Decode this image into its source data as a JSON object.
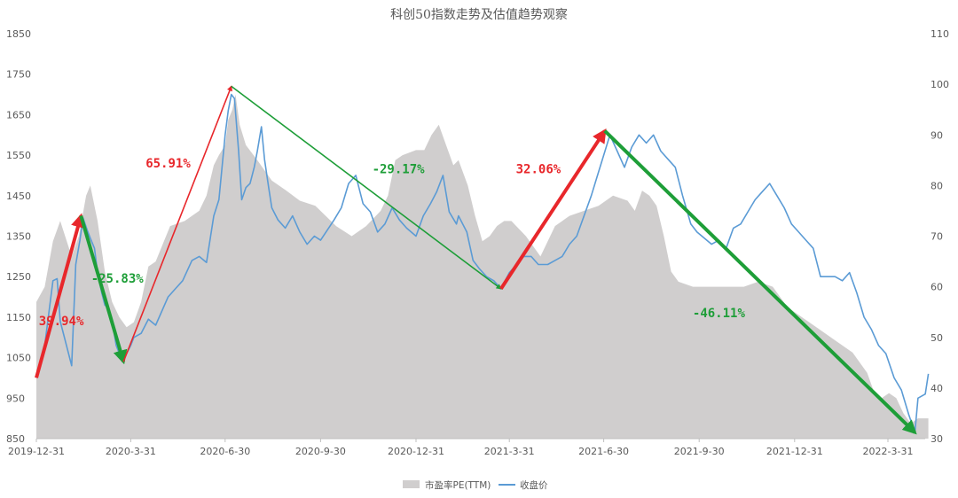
{
  "chart_data": {
    "type": "line",
    "title": "科创50指数走势及估值趋势观察",
    "xlabel": "",
    "ylabel": "",
    "x_ticks": [
      "2019-12-31",
      "2020-3-31",
      "2020-6-30",
      "2020-9-30",
      "2020-12-31",
      "2021-3-31",
      "2021-6-30",
      "2021-9-30",
      "2021-12-31",
      "2022-3-31"
    ],
    "ylim": [
      850,
      1850
    ],
    "y_ticks": [
      850,
      950,
      1050,
      1150,
      1250,
      1350,
      1450,
      1550,
      1650,
      1750,
      1850
    ],
    "y2lim": [
      30,
      110
    ],
    "y2_ticks": [
      30,
      40,
      50,
      60,
      70,
      80,
      90,
      100,
      110
    ],
    "grid": false,
    "legend_position": "bottom",
    "series": [
      {
        "name": "市盈率PE(TTM)",
        "type": "area",
        "axis": "right",
        "color": "#d0cece",
        "points": [
          [
            "2019-12-31",
            57
          ],
          [
            "2020-1-8",
            60
          ],
          [
            "2020-1-16",
            69
          ],
          [
            "2020-1-23",
            73
          ],
          [
            "2020-2-3",
            66
          ],
          [
            "2020-2-10",
            70
          ],
          [
            "2020-2-17",
            78
          ],
          [
            "2020-2-21",
            80
          ],
          [
            "2020-2-28",
            73
          ],
          [
            "2020-3-6",
            63
          ],
          [
            "2020-3-13",
            57
          ],
          [
            "2020-3-20",
            54
          ],
          [
            "2020-3-27",
            52
          ],
          [
            "2020-4-3",
            53
          ],
          [
            "2020-4-10",
            57
          ],
          [
            "2020-4-17",
            64
          ],
          [
            "2020-4-24",
            65
          ],
          [
            "2020-5-8",
            72
          ],
          [
            "2020-5-22",
            73
          ],
          [
            "2020-6-5",
            75
          ],
          [
            "2020-6-12",
            78
          ],
          [
            "2020-6-19",
            84
          ],
          [
            "2020-6-24",
            86
          ],
          [
            "2020-6-30",
            88
          ],
          [
            "2020-7-3",
            93
          ],
          [
            "2020-7-7",
            95
          ],
          [
            "2020-7-10",
            98
          ],
          [
            "2020-7-14",
            92
          ],
          [
            "2020-7-20",
            88
          ],
          [
            "2020-7-31",
            85
          ],
          [
            "2020-8-14",
            81
          ],
          [
            "2020-8-28",
            79
          ],
          [
            "2020-9-10",
            77
          ],
          [
            "2020-9-25",
            76
          ],
          [
            "2020-10-15",
            72
          ],
          [
            "2020-10-30",
            70
          ],
          [
            "2020-11-13",
            72
          ],
          [
            "2020-11-27",
            75
          ],
          [
            "2020-12-4",
            78
          ],
          [
            "2020-12-11",
            85
          ],
          [
            "2020-12-18",
            86
          ],
          [
            "2020-12-31",
            87
          ],
          [
            "2021-1-8",
            87
          ],
          [
            "2021-1-15",
            90
          ],
          [
            "2021-1-22",
            92
          ],
          [
            "2021-1-29",
            88
          ],
          [
            "2021-2-5",
            84
          ],
          [
            "2021-2-10",
            85
          ],
          [
            "2021-2-19",
            80
          ],
          [
            "2021-2-26",
            74
          ],
          [
            "2021-3-5",
            69
          ],
          [
            "2021-3-12",
            70
          ],
          [
            "2021-3-19",
            72
          ],
          [
            "2021-3-26",
            73
          ],
          [
            "2021-4-2",
            73
          ],
          [
            "2021-4-16",
            70
          ],
          [
            "2021-4-30",
            66
          ],
          [
            "2021-5-14",
            72
          ],
          [
            "2021-5-28",
            74
          ],
          [
            "2021-6-11",
            75
          ],
          [
            "2021-6-25",
            76
          ],
          [
            "2021-7-9",
            78
          ],
          [
            "2021-7-23",
            77
          ],
          [
            "2021-7-30",
            75
          ],
          [
            "2021-8-6",
            79
          ],
          [
            "2021-8-13",
            78
          ],
          [
            "2021-8-20",
            76
          ],
          [
            "2021-8-27",
            70
          ],
          [
            "2021-9-3",
            63
          ],
          [
            "2021-9-10",
            61
          ],
          [
            "2021-9-24",
            60
          ],
          [
            "2021-10-15",
            60
          ],
          [
            "2021-10-29",
            60
          ],
          [
            "2021-11-12",
            60
          ],
          [
            "2021-11-26",
            61
          ],
          [
            "2021-12-10",
            60
          ],
          [
            "2021-12-24",
            56
          ],
          [
            "2022-1-7",
            54
          ],
          [
            "2022-1-21",
            52
          ],
          [
            "2022-2-11",
            49
          ],
          [
            "2022-2-25",
            47
          ],
          [
            "2022-3-11",
            43
          ],
          [
            "2022-3-18",
            39
          ],
          [
            "2022-3-25",
            38
          ],
          [
            "2022-4-1",
            39
          ],
          [
            "2022-4-8",
            38
          ],
          [
            "2022-4-15",
            35
          ],
          [
            "2022-4-22",
            33
          ],
          [
            "2022-4-29",
            34
          ],
          [
            "2022-5-6",
            34
          ],
          [
            "2022-5-9",
            34
          ]
        ]
      },
      {
        "name": "收盘价",
        "type": "line",
        "axis": "left",
        "color": "#5b9bd5",
        "points": [
          [
            "2019-12-31",
            1000
          ],
          [
            "2020-1-3",
            1020
          ],
          [
            "2020-1-8",
            1080
          ],
          [
            "2020-1-13",
            1180
          ],
          [
            "2020-1-16",
            1240
          ],
          [
            "2020-1-20",
            1245
          ],
          [
            "2020-1-23",
            1140
          ],
          [
            "2020-2-3",
            1030
          ],
          [
            "2020-2-7",
            1280
          ],
          [
            "2020-2-11",
            1340
          ],
          [
            "2020-2-14",
            1395
          ],
          [
            "2020-2-18",
            1365
          ],
          [
            "2020-2-21",
            1345
          ],
          [
            "2020-2-25",
            1320
          ],
          [
            "2020-2-28",
            1260
          ],
          [
            "2020-3-3",
            1210
          ],
          [
            "2020-3-6",
            1180
          ],
          [
            "2020-3-10",
            1170
          ],
          [
            "2020-3-13",
            1140
          ],
          [
            "2020-3-17",
            1080
          ],
          [
            "2020-3-20",
            1060
          ],
          [
            "2020-3-24",
            1045
          ],
          [
            "2020-3-31",
            1080
          ],
          [
            "2020-4-3",
            1100
          ],
          [
            "2020-4-10",
            1110
          ],
          [
            "2020-4-17",
            1145
          ],
          [
            "2020-4-24",
            1130
          ],
          [
            "2020-5-6",
            1200
          ],
          [
            "2020-5-13",
            1220
          ],
          [
            "2020-5-20",
            1240
          ],
          [
            "2020-5-29",
            1290
          ],
          [
            "2020-6-5",
            1300
          ],
          [
            "2020-6-12",
            1285
          ],
          [
            "2020-6-19",
            1400
          ],
          [
            "2020-6-24",
            1440
          ],
          [
            "2020-6-30",
            1600
          ],
          [
            "2020-7-3",
            1660
          ],
          [
            "2020-7-6",
            1700
          ],
          [
            "2020-7-9",
            1690
          ],
          [
            "2020-7-13",
            1560
          ],
          [
            "2020-7-16",
            1440
          ],
          [
            "2020-7-20",
            1470
          ],
          [
            "2020-7-24",
            1480
          ],
          [
            "2020-7-28",
            1520
          ],
          [
            "2020-7-31",
            1560
          ],
          [
            "2020-8-4",
            1620
          ],
          [
            "2020-8-7",
            1540
          ],
          [
            "2020-8-11",
            1470
          ],
          [
            "2020-8-14",
            1420
          ],
          [
            "2020-8-20",
            1390
          ],
          [
            "2020-8-27",
            1370
          ],
          [
            "2020-9-3",
            1400
          ],
          [
            "2020-9-10",
            1360
          ],
          [
            "2020-9-17",
            1330
          ],
          [
            "2020-9-24",
            1350
          ],
          [
            "2020-9-30",
            1340
          ],
          [
            "2020-10-13",
            1390
          ],
          [
            "2020-10-20",
            1420
          ],
          [
            "2020-10-27",
            1480
          ],
          [
            "2020-11-3",
            1500
          ],
          [
            "2020-11-10",
            1430
          ],
          [
            "2020-11-17",
            1410
          ],
          [
            "2020-11-24",
            1360
          ],
          [
            "2020-12-1",
            1380
          ],
          [
            "2020-12-8",
            1420
          ],
          [
            "2020-12-15",
            1390
          ],
          [
            "2020-12-22",
            1370
          ],
          [
            "2020-12-31",
            1350
          ],
          [
            "2021-1-7",
            1400
          ],
          [
            "2021-1-14",
            1430
          ],
          [
            "2021-1-20",
            1460
          ],
          [
            "2021-1-26",
            1500
          ],
          [
            "2021-2-1",
            1410
          ],
          [
            "2021-2-8",
            1380
          ],
          [
            "2021-2-10",
            1400
          ],
          [
            "2021-2-18",
            1360
          ],
          [
            "2021-2-24",
            1290
          ],
          [
            "2021-3-2",
            1270
          ],
          [
            "2021-3-9",
            1250
          ],
          [
            "2021-3-16",
            1240
          ],
          [
            "2021-3-23",
            1220
          ],
          [
            "2021-3-31",
            1260
          ],
          [
            "2021-4-7",
            1280
          ],
          [
            "2021-4-14",
            1300
          ],
          [
            "2021-4-21",
            1300
          ],
          [
            "2021-4-28",
            1280
          ],
          [
            "2021-5-7",
            1280
          ],
          [
            "2021-5-14",
            1290
          ],
          [
            "2021-5-21",
            1300
          ],
          [
            "2021-5-28",
            1330
          ],
          [
            "2021-6-4",
            1350
          ],
          [
            "2021-6-11",
            1400
          ],
          [
            "2021-6-18",
            1450
          ],
          [
            "2021-6-24",
            1500
          ],
          [
            "2021-6-30",
            1550
          ],
          [
            "2021-7-6",
            1600
          ],
          [
            "2021-7-13",
            1560
          ],
          [
            "2021-7-20",
            1520
          ],
          [
            "2021-7-27",
            1570
          ],
          [
            "2021-8-3",
            1600
          ],
          [
            "2021-8-10",
            1580
          ],
          [
            "2021-8-17",
            1600
          ],
          [
            "2021-8-24",
            1560
          ],
          [
            "2021-8-31",
            1540
          ],
          [
            "2021-9-7",
            1520
          ],
          [
            "2021-9-14",
            1450
          ],
          [
            "2021-9-22",
            1380
          ],
          [
            "2021-9-28",
            1360
          ],
          [
            "2021-10-12",
            1330
          ],
          [
            "2021-10-19",
            1340
          ],
          [
            "2021-10-26",
            1320
          ],
          [
            "2021-11-2",
            1370
          ],
          [
            "2021-11-9",
            1380
          ],
          [
            "2021-11-16",
            1410
          ],
          [
            "2021-11-23",
            1440
          ],
          [
            "2021-11-30",
            1460
          ],
          [
            "2021-12-7",
            1480
          ],
          [
            "2021-12-14",
            1450
          ],
          [
            "2021-12-21",
            1420
          ],
          [
            "2021-12-28",
            1380
          ],
          [
            "2022-1-4",
            1360
          ],
          [
            "2022-1-11",
            1340
          ],
          [
            "2022-1-18",
            1320
          ],
          [
            "2022-1-25",
            1250
          ],
          [
            "2022-2-8",
            1250
          ],
          [
            "2022-2-15",
            1240
          ],
          [
            "2022-2-22",
            1260
          ],
          [
            "2022-3-1",
            1210
          ],
          [
            "2022-3-8",
            1150
          ],
          [
            "2022-3-15",
            1120
          ],
          [
            "2022-3-22",
            1080
          ],
          [
            "2022-3-29",
            1060
          ],
          [
            "2022-4-6",
            1000
          ],
          [
            "2022-4-13",
            970
          ],
          [
            "2022-4-20",
            910
          ],
          [
            "2022-4-26",
            865
          ],
          [
            "2022-4-29",
            950
          ],
          [
            "2022-5-6",
            960
          ],
          [
            "2022-5-9",
            1010
          ]
        ]
      }
    ],
    "annotations": [
      {
        "text": "39.94%",
        "color": "#e8272b",
        "x": "2020-1-24",
        "y": 1130
      },
      {
        "text": "-25.83%",
        "color": "#1e9e38",
        "x": "2020-3-18",
        "y": 1235
      },
      {
        "text": "65.91%",
        "color": "#e8272b",
        "x": "2020-5-6",
        "y": 1520
      },
      {
        "text": "-29.17%",
        "color": "#1e9e38",
        "x": "2020-12-14",
        "y": 1505
      },
      {
        "text": "32.06%",
        "color": "#e8272b",
        "x": "2021-4-28",
        "y": 1505
      },
      {
        "text": "-46.11%",
        "color": "#1e9e38",
        "x": "2021-10-19",
        "y": 1150
      }
    ],
    "arrows": [
      {
        "from": [
          "2019-12-31",
          1000
        ],
        "to": [
          "2020-2-12",
          1400
        ],
        "color": "#e8272b"
      },
      {
        "from": [
          "2020-2-12",
          1400
        ],
        "to": [
          "2020-3-24",
          1040
        ],
        "color": "#1e9e38"
      },
      {
        "from": [
          "2020-3-24",
          1040
        ],
        "to": [
          "2020-7-6",
          1720
        ],
        "color": "#e8272b"
      },
      {
        "from": [
          "2020-7-6",
          1720
        ],
        "to": [
          "2021-3-23",
          1220
        ],
        "color": "#1e9e38"
      },
      {
        "from": [
          "2021-3-23",
          1220
        ],
        "to": [
          "2021-7-1",
          1610
        ],
        "color": "#e8272b"
      },
      {
        "from": [
          "2021-7-1",
          1610
        ],
        "to": [
          "2022-4-26",
          865
        ],
        "color": "#1e9e38"
      }
    ]
  }
}
